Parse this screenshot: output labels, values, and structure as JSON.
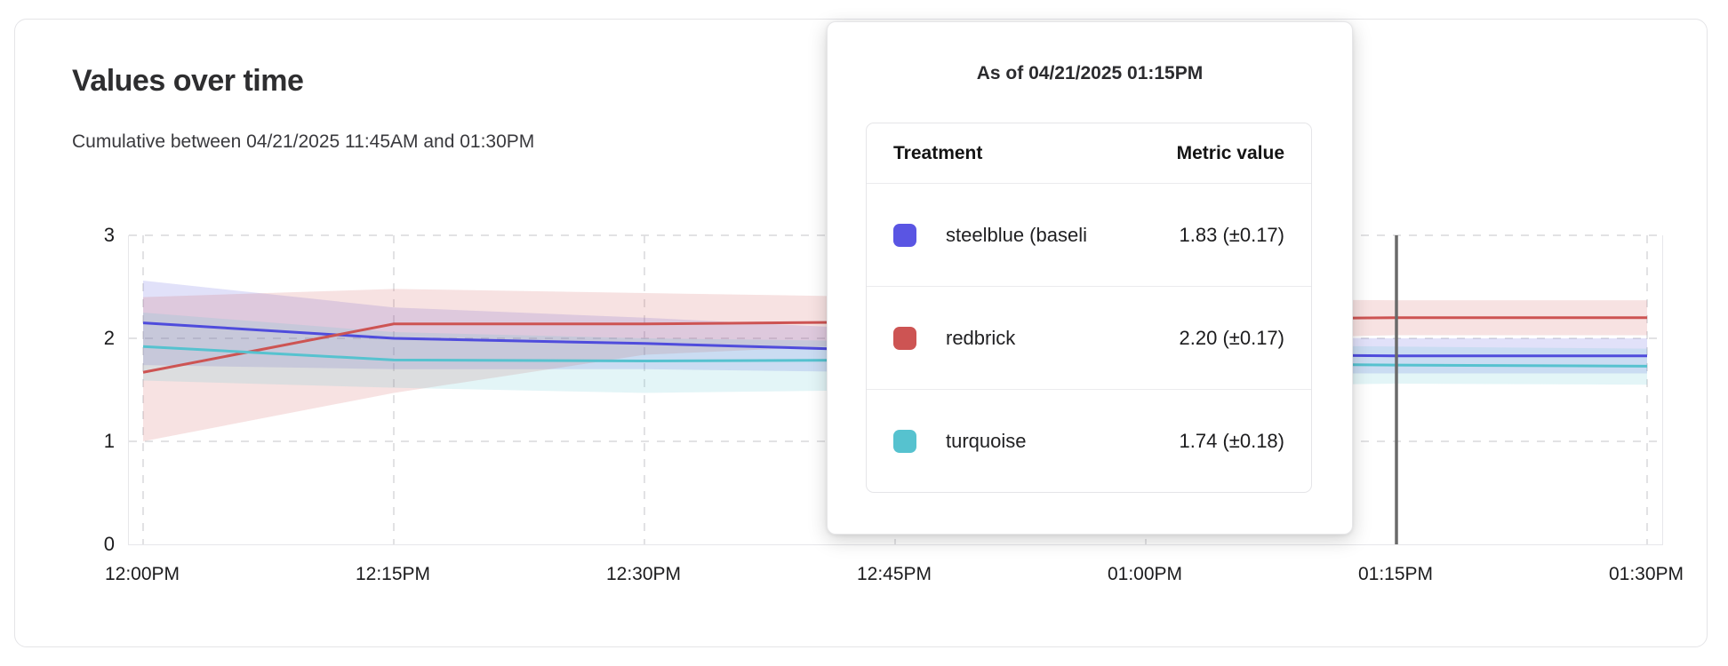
{
  "header": {
    "title": "Values over time",
    "subtitle": "Cumulative between 04/21/2025 11:45AM and 01:30PM"
  },
  "tooltip": {
    "title": "As of 04/21/2025 01:15PM",
    "columns": [
      "Treatment",
      "Metric value"
    ],
    "rows": [
      {
        "swatch_color": "#5a55e3",
        "label": "steelblue  (baseli",
        "value": "1.83 (±0.17)"
      },
      {
        "swatch_color": "#cd5453",
        "label": "redbrick",
        "value": "2.20 (±0.17)"
      },
      {
        "swatch_color": "#56c2cf",
        "label": "turquoise",
        "value": "1.74 (±0.18)"
      }
    ]
  },
  "chart_data": {
    "type": "line",
    "title": "Values over time",
    "xlabel": "",
    "ylabel": "",
    "x": [
      "12:00PM",
      "12:15PM",
      "12:30PM",
      "12:45PM",
      "01:00PM",
      "01:15PM",
      "01:30PM"
    ],
    "y_ticks": [
      0,
      1,
      2,
      3
    ],
    "ylim": [
      0,
      3
    ],
    "grid": "dashed",
    "legend_position": "none",
    "hover_index": 5,
    "hover_label": "01:15PM",
    "hover_line_color": "#6a6a6a",
    "series": [
      {
        "name": "steelblue (baseline)",
        "color": "#4f4cdc",
        "values": [
          2.15,
          2.0,
          1.95,
          1.88,
          1.85,
          1.83,
          1.83
        ],
        "upper": [
          2.56,
          2.3,
          2.2,
          2.08,
          2.02,
          2.0,
          2.0
        ],
        "lower": [
          1.74,
          1.7,
          1.7,
          1.67,
          1.66,
          1.66,
          1.66
        ]
      },
      {
        "name": "redbrick",
        "color": "#cd5453",
        "values": [
          1.67,
          2.14,
          2.14,
          2.16,
          2.18,
          2.2,
          2.2
        ],
        "upper": [
          2.4,
          2.48,
          2.44,
          2.4,
          2.38,
          2.37,
          2.37
        ],
        "lower": [
          1.0,
          1.47,
          1.84,
          1.95,
          1.98,
          2.03,
          2.03
        ]
      },
      {
        "name": "turquoise",
        "color": "#56c2cf",
        "values": [
          1.92,
          1.79,
          1.78,
          1.79,
          1.76,
          1.74,
          1.73
        ],
        "upper": [
          2.25,
          2.06,
          2.0,
          1.97,
          1.94,
          1.92,
          1.9
        ],
        "lower": [
          1.59,
          1.52,
          1.47,
          1.5,
          1.53,
          1.56,
          1.55
        ]
      }
    ]
  }
}
